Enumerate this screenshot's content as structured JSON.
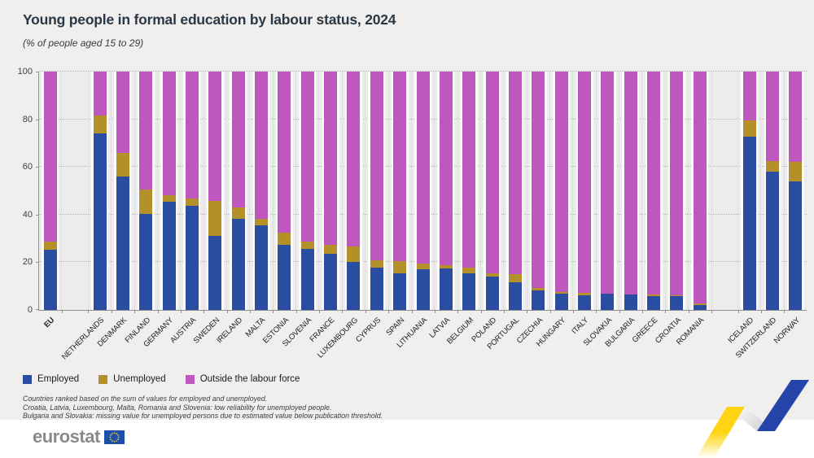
{
  "title": "Young people in formal education by labour status, 2024",
  "subtitle": "(% of people aged 15 to 29)",
  "footnotes": [
    "Countries ranked based on the sum of values for employed and unemployed.",
    "Croatia, Latvia, Luxembourg, Malta, Romania and Slovenia: low reliability for unemployed people.",
    "Bulgaria and Slovakia: missing value for unemployed persons due to estimated value below publication threshold."
  ],
  "footer": {
    "logo_text": "eurostat"
  },
  "chart_data": {
    "type": "bar",
    "stacked": true,
    "title": "Young people in formal education by labour status, 2024",
    "subtitle": "(% of people aged 15 to 29)",
    "xlabel": "",
    "ylabel": "",
    "ylim": [
      0,
      100
    ],
    "yticks": [
      0,
      20,
      40,
      60,
      80,
      100
    ],
    "grid": "dotted",
    "legend_position": "bottom-left",
    "series_names": [
      "Employed",
      "Unemployed",
      "Outside the labour force"
    ],
    "colors": {
      "employed": "#2a4da2",
      "unemployed": "#b3902a",
      "outside": "#bf58be"
    },
    "spacers_after": [
      "EU",
      "ROMANIA"
    ],
    "categories": [
      {
        "label": "EU",
        "bold": true,
        "employed": 25.4,
        "unemployed": 3.2,
        "outside": 71.4
      },
      {
        "label": "NETHERLANDS",
        "employed": 74.2,
        "unemployed": 7.3,
        "outside": 18.5
      },
      {
        "label": "DENMARK",
        "employed": 56.1,
        "unemployed": 9.8,
        "outside": 34.1
      },
      {
        "label": "FINLAND",
        "employed": 40.3,
        "unemployed": 10.2,
        "outside": 49.5
      },
      {
        "label": "GERMANY",
        "employed": 45.4,
        "unemployed": 2.8,
        "outside": 51.8
      },
      {
        "label": "AUSTRIA",
        "employed": 43.6,
        "unemployed": 3.1,
        "outside": 53.3
      },
      {
        "label": "SWEDEN",
        "employed": 31.0,
        "unemployed": 14.6,
        "outside": 54.4
      },
      {
        "label": "IRELAND",
        "employed": 38.3,
        "unemployed": 4.6,
        "outside": 57.1
      },
      {
        "label": "MALTA",
        "employed": 35.4,
        "unemployed": 3.0,
        "outside": 61.6
      },
      {
        "label": "ESTONIA",
        "employed": 27.2,
        "unemployed": 5.2,
        "outside": 67.6
      },
      {
        "label": "SLOVENIA",
        "employed": 25.7,
        "unemployed": 3.1,
        "outside": 71.2
      },
      {
        "label": "FRANCE",
        "employed": 23.7,
        "unemployed": 3.7,
        "outside": 72.6
      },
      {
        "label": "LUXEMBOURG",
        "employed": 20.2,
        "unemployed": 6.6,
        "outside": 73.2
      },
      {
        "label": "CYPRUS",
        "employed": 17.8,
        "unemployed": 3.1,
        "outside": 79.1
      },
      {
        "label": "SPAIN",
        "employed": 15.5,
        "unemployed": 5.1,
        "outside": 79.4
      },
      {
        "label": "LITHUANIA",
        "employed": 17.0,
        "unemployed": 2.5,
        "outside": 80.5
      },
      {
        "label": "LATVIA",
        "employed": 17.4,
        "unemployed": 1.4,
        "outside": 81.2
      },
      {
        "label": "BELGIUM",
        "employed": 15.4,
        "unemployed": 2.5,
        "outside": 82.1
      },
      {
        "label": "POLAND",
        "employed": 14.0,
        "unemployed": 1.4,
        "outside": 84.6
      },
      {
        "label": "PORTUGAL",
        "employed": 11.5,
        "unemployed": 3.4,
        "outside": 85.1
      },
      {
        "label": "CZECHIA",
        "employed": 8.3,
        "unemployed": 1.0,
        "outside": 90.7
      },
      {
        "label": "HUNGARY",
        "employed": 7.0,
        "unemployed": 0.6,
        "outside": 92.4
      },
      {
        "label": "ITALY",
        "employed": 6.1,
        "unemployed": 1.2,
        "outside": 92.7
      },
      {
        "label": "SLOVAKIA",
        "employed": 6.9,
        "unemployed": 0,
        "outside": 93.1
      },
      {
        "label": "BULGARIA",
        "employed": 6.5,
        "unemployed": 0,
        "outside": 93.5
      },
      {
        "label": "GREECE",
        "employed": 5.7,
        "unemployed": 0.7,
        "outside": 93.6
      },
      {
        "label": "CROATIA",
        "employed": 5.9,
        "unemployed": 0.4,
        "outside": 93.7
      },
      {
        "label": "ROMANIA",
        "employed": 2.2,
        "unemployed": 0.4,
        "outside": 97.4
      },
      {
        "label": "ICELAND",
        "employed": 72.8,
        "unemployed": 6.8,
        "outside": 20.4
      },
      {
        "label": "SWITZERLAND",
        "employed": 58.1,
        "unemployed": 4.4,
        "outside": 37.5
      },
      {
        "label": "NORWAY",
        "employed": 53.9,
        "unemployed": 8.2,
        "outside": 37.9
      }
    ]
  }
}
